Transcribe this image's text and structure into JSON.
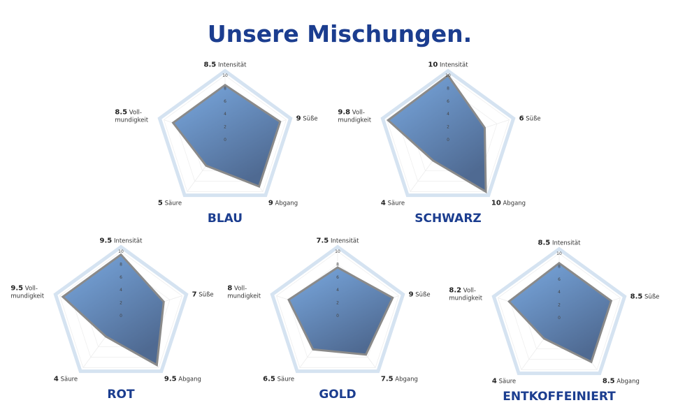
{
  "title": "Unsere Mischungen.",
  "chart_data": [
    {
      "type": "radar",
      "title": "BLAU",
      "categories": [
        "Intensität",
        "Süße",
        "Abgang",
        "Säure",
        "Voll-mundigkeit"
      ],
      "values": [
        8.5,
        9,
        9,
        5,
        8.5
      ],
      "color": "#7aa9e0",
      "rlim": [
        0,
        10
      ],
      "rticks": [
        0,
        2,
        4,
        6,
        8,
        10
      ]
    },
    {
      "type": "radar",
      "title": "SCHWARZ",
      "categories": [
        "Intensität",
        "Süße",
        "Abgang",
        "Säure",
        "Voll-mundigkeit"
      ],
      "values": [
        10,
        6,
        10,
        4,
        9.8
      ],
      "color": "#7aa9e0",
      "rlim": [
        0,
        10
      ],
      "rticks": [
        0,
        2,
        4,
        6,
        8,
        10
      ]
    },
    {
      "type": "radar",
      "title": "ROT",
      "categories": [
        "Intensität",
        "Süße",
        "Abgang",
        "Säure",
        "Voll-mundigkeit"
      ],
      "values": [
        9.5,
        7,
        9.5,
        4,
        9.5
      ],
      "color": "#7aa9e0",
      "rlim": [
        0,
        10
      ],
      "rticks": [
        0,
        2,
        4,
        6,
        8,
        10
      ]
    },
    {
      "type": "radar",
      "title": "GOLD",
      "categories": [
        "Intensität",
        "Süße",
        "Abgang",
        "Säure",
        "Voll-mundigkeit"
      ],
      "values": [
        7.5,
        9,
        7.5,
        6.5,
        8
      ],
      "color": "#7aa9e0",
      "rlim": [
        0,
        10
      ],
      "rticks": [
        0,
        2,
        4,
        6,
        8,
        10
      ]
    },
    {
      "type": "radar",
      "title": "ENTKOFFEINIERT",
      "categories": [
        "Intensität",
        "Süße",
        "Abgang",
        "Säure",
        "Voll-mundigkeit"
      ],
      "values": [
        8.5,
        8.5,
        8.5,
        4,
        8.2
      ],
      "color": "#7aa9e0",
      "rlim": [
        0,
        10
      ],
      "rticks": [
        0,
        2,
        4,
        6,
        8,
        10
      ]
    }
  ]
}
